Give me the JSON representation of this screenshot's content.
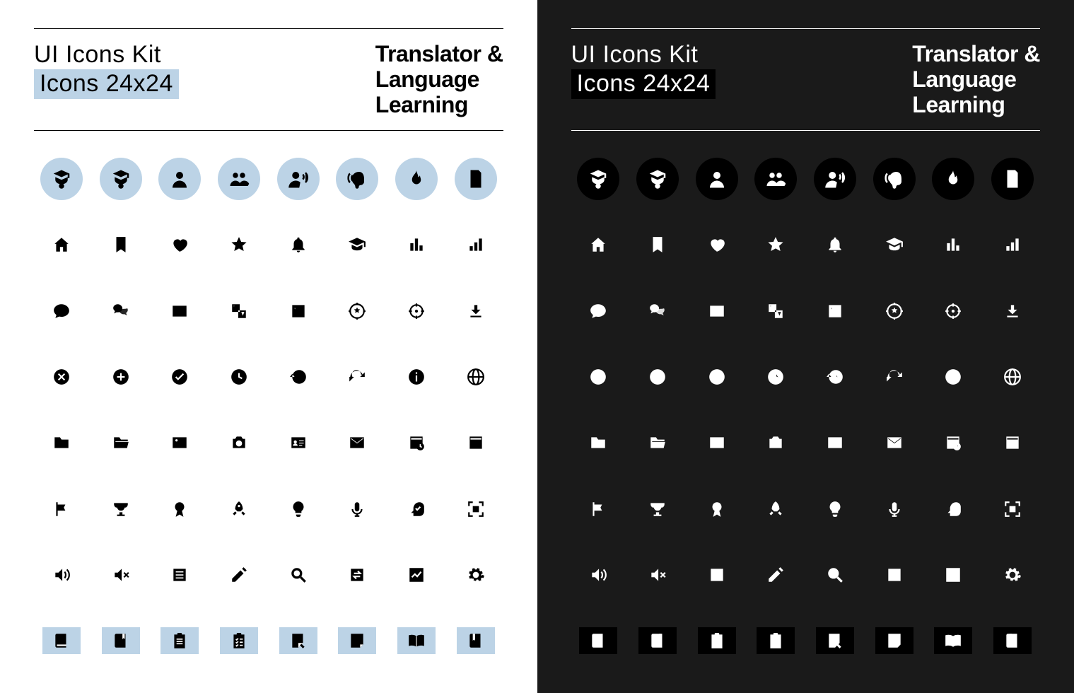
{
  "colors": {
    "light_bg": "#ffffff",
    "dark_bg": "#1a1a1a",
    "accent": "#bcd3e6",
    "light_fg": "#000000",
    "dark_fg": "#ffffff"
  },
  "header": {
    "kit_name": "UI Icons Kit",
    "kit_sub": "Icons 24x24",
    "theme_line1": "Translator &",
    "theme_line2": "Language",
    "theme_line3": "Learning"
  },
  "layout": {
    "columns": 8,
    "rows": 9,
    "circle_row_index": 0,
    "stripe_row_index": 8
  },
  "icons": [
    [
      "graduate",
      "graduate",
      "user",
      "users",
      "speak",
      "listen",
      "flame",
      "document"
    ],
    [
      "home",
      "bookmark",
      "heart",
      "star",
      "bell",
      "graduation-cap",
      "bars",
      "bars-asc"
    ],
    [
      "chat",
      "chats",
      "subtitles",
      "translate",
      "dictionary",
      "target-star",
      "crosshair",
      "download"
    ],
    [
      "close-circle",
      "plus-circle",
      "check-circle",
      "clock",
      "history",
      "refresh",
      "info",
      "globe"
    ],
    [
      "folder",
      "folder-open",
      "image",
      "camera",
      "id-card",
      "mail",
      "calendar-clock",
      "calendar"
    ],
    [
      "flag",
      "trophy",
      "medal",
      "rocket",
      "bulb",
      "mic",
      "brain-check",
      "focus"
    ],
    [
      "volume",
      "volume-mute",
      "list",
      "pencil",
      "search",
      "swap",
      "chart",
      "gear"
    ],
    [
      "book",
      "book-bookmark",
      "clipboard",
      "checklist",
      "note-edit",
      "note",
      "open-book",
      "book-ribbon"
    ]
  ]
}
